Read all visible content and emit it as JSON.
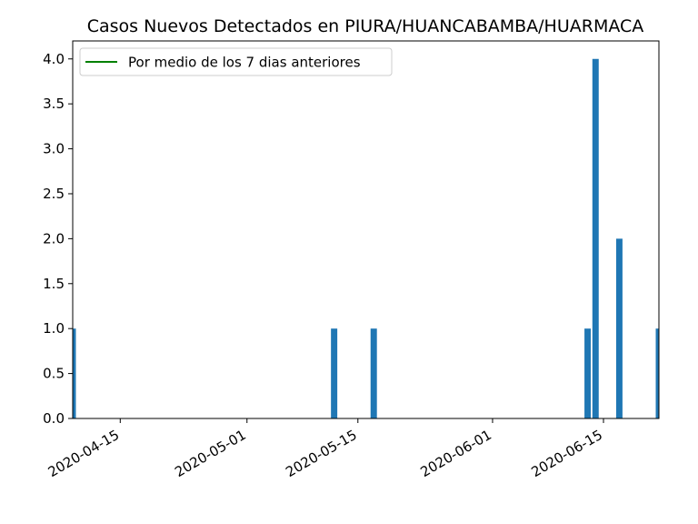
{
  "chart_data": {
    "type": "bar",
    "title": "Casos Nuevos Detectados en PIURA/HUANCABAMBA/HUARMACA",
    "xlabel": "",
    "ylabel": "",
    "x_start": "2020-04-09",
    "x_end": "2020-06-22",
    "ylim": [
      0,
      4.2
    ],
    "y_ticks": [
      "0.0",
      "0.5",
      "1.0",
      "1.5",
      "2.0",
      "2.5",
      "3.0",
      "3.5",
      "4.0"
    ],
    "x_ticks": [
      "2020-04-15",
      "2020-05-01",
      "2020-05-15",
      "2020-06-01",
      "2020-06-15"
    ],
    "bars": [
      {
        "date": "2020-04-09",
        "value": 1
      },
      {
        "date": "2020-05-12",
        "value": 1
      },
      {
        "date": "2020-05-17",
        "value": 1
      },
      {
        "date": "2020-06-13",
        "value": 1
      },
      {
        "date": "2020-06-14",
        "value": 4
      },
      {
        "date": "2020-06-17",
        "value": 2
      },
      {
        "date": "2020-06-22",
        "value": 1
      }
    ],
    "bar_color": "#1f77b4",
    "legend": [
      {
        "label": "Por medio de los 7 dias anteriores",
        "color": "#008000",
        "marker": "line"
      }
    ],
    "legend_position": "top-left",
    "grid": false
  }
}
